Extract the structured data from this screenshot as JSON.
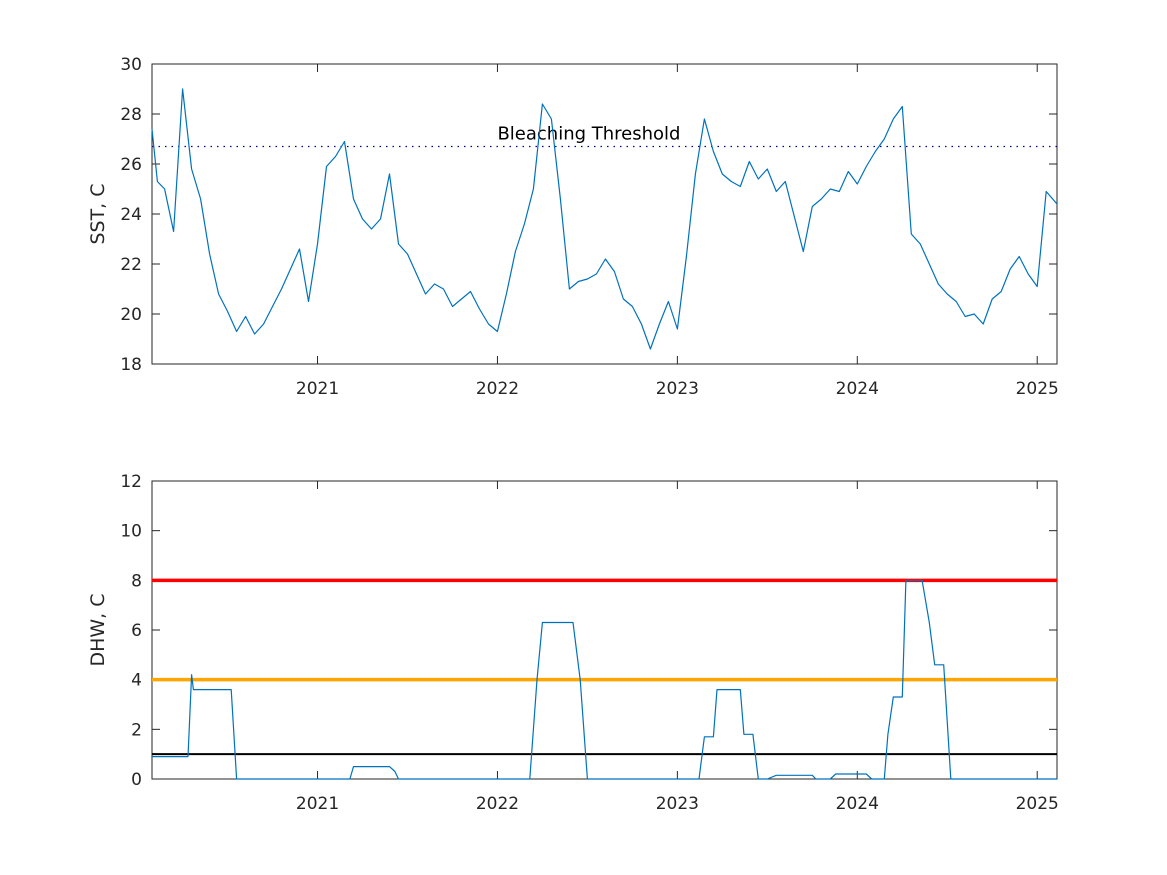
{
  "colors": {
    "series": "#0072bd",
    "threshold_line": "#00008b",
    "dhw_red": "#ff0000",
    "dhw_orange": "#ffa500",
    "dhw_black": "#000000",
    "axis": "#262626"
  },
  "chart_data": [
    {
      "type": "line",
      "ylabel": "SST, C",
      "xlabel": "",
      "title": "",
      "xlim": [
        2020.08,
        2025.11
      ],
      "ylim": [
        18,
        30
      ],
      "grid": false,
      "xticks": [
        2021,
        2022,
        2023,
        2024,
        2025
      ],
      "xtick_labels": [
        "2021",
        "2022",
        "2023",
        "2024",
        "2025"
      ],
      "yticks": [
        18,
        20,
        22,
        24,
        26,
        28,
        30
      ],
      "ytick_labels": [
        "18",
        "20",
        "22",
        "24",
        "26",
        "28",
        "30"
      ],
      "series": [
        {
          "x": [
            2020.08,
            2020.11,
            2020.15,
            2020.2,
            2020.25,
            2020.3,
            2020.35,
            2020.4,
            2020.45,
            2020.5,
            2020.55,
            2020.6,
            2020.65,
            2020.7,
            2020.75,
            2020.8,
            2020.85,
            2020.9,
            2020.95,
            2021.0,
            2021.05,
            2021.1,
            2021.15,
            2021.2,
            2021.25,
            2021.3,
            2021.35,
            2021.4,
            2021.45,
            2021.5,
            2021.55,
            2021.6,
            2021.65,
            2021.7,
            2021.75,
            2021.8,
            2021.85,
            2021.9,
            2021.95,
            2022.0,
            2022.05,
            2022.1,
            2022.15,
            2022.2,
            2022.25,
            2022.3,
            2022.35,
            2022.4,
            2022.45,
            2022.5,
            2022.55,
            2022.6,
            2022.65,
            2022.7,
            2022.75,
            2022.8,
            2022.85,
            2022.9,
            2022.95,
            2023.0,
            2023.05,
            2023.1,
            2023.15,
            2023.2,
            2023.25,
            2023.3,
            2023.35,
            2023.4,
            2023.45,
            2023.5,
            2023.55,
            2023.6,
            2023.65,
            2023.7,
            2023.75,
            2023.8,
            2023.85,
            2023.9,
            2023.95,
            2024.0,
            2024.05,
            2024.1,
            2024.15,
            2024.2,
            2024.25,
            2024.3,
            2024.35,
            2024.4,
            2024.45,
            2024.5,
            2024.55,
            2024.6,
            2024.65,
            2024.7,
            2024.75,
            2024.8,
            2024.85,
            2024.9,
            2024.95,
            2025.0,
            2025.05,
            2025.11
          ],
          "y": [
            27.4,
            25.3,
            25.0,
            23.3,
            29.0,
            25.8,
            24.6,
            22.4,
            20.8,
            20.1,
            19.3,
            19.9,
            19.2,
            19.6,
            20.3,
            21.0,
            21.8,
            22.6,
            20.5,
            22.8,
            25.9,
            26.3,
            26.9,
            24.6,
            23.8,
            23.4,
            23.8,
            25.6,
            22.8,
            22.4,
            21.6,
            20.8,
            21.2,
            21.0,
            20.3,
            20.6,
            20.9,
            20.2,
            19.6,
            19.3,
            20.8,
            22.5,
            23.6,
            25.0,
            28.4,
            27.8,
            24.6,
            21.0,
            21.3,
            21.4,
            21.6,
            22.2,
            21.7,
            20.6,
            20.3,
            19.6,
            18.6,
            19.6,
            20.5,
            19.4,
            22.3,
            25.6,
            27.8,
            26.5,
            25.6,
            25.3,
            25.1,
            26.1,
            25.4,
            25.8,
            24.9,
            25.3,
            23.9,
            22.5,
            24.3,
            24.6,
            25.0,
            24.9,
            25.7,
            25.2,
            25.9,
            26.5,
            27.0,
            27.8,
            28.3,
            23.2,
            22.8,
            22.0,
            21.2,
            20.8,
            20.5,
            19.9,
            20.0,
            19.6,
            20.6,
            20.9,
            21.8,
            22.3,
            21.6,
            21.1,
            24.9,
            24.4
          ]
        }
      ],
      "reference_lines": [
        {
          "y": 26.7,
          "style": "dotted",
          "label": "Bleaching Threshold",
          "label_x": 2022.0
        }
      ]
    },
    {
      "type": "line",
      "ylabel": "DHW, C",
      "xlabel": "",
      "title": "",
      "xlim": [
        2020.08,
        2025.11
      ],
      "ylim": [
        0,
        12
      ],
      "grid": false,
      "xticks": [
        2021,
        2022,
        2023,
        2024,
        2025
      ],
      "xtick_labels": [
        "2021",
        "2022",
        "2023",
        "2024",
        "2025"
      ],
      "yticks": [
        0,
        2,
        4,
        6,
        8,
        10,
        12
      ],
      "ytick_labels": [
        "0",
        "2",
        "4",
        "6",
        "8",
        "10",
        "12"
      ],
      "series": [
        {
          "x": [
            2020.08,
            2020.28,
            2020.3,
            2020.31,
            2020.34,
            2020.52,
            2020.55,
            2021.0,
            2021.18,
            2021.2,
            2021.4,
            2021.43,
            2021.45,
            2022.0,
            2022.18,
            2022.22,
            2022.25,
            2022.42,
            2022.46,
            2022.5,
            2023.0,
            2023.12,
            2023.15,
            2023.2,
            2023.22,
            2023.35,
            2023.37,
            2023.42,
            2023.45,
            2023.5,
            2023.55,
            2023.75,
            2023.77,
            2023.85,
            2023.88,
            2024.05,
            2024.08,
            2024.15,
            2024.17,
            2024.2,
            2024.25,
            2024.27,
            2024.36,
            2024.4,
            2024.43,
            2024.48,
            2024.52,
            2025.11
          ],
          "y": [
            0.9,
            0.9,
            4.2,
            3.6,
            3.6,
            3.6,
            0.0,
            0.0,
            0.0,
            0.5,
            0.5,
            0.3,
            0.0,
            0.0,
            0.0,
            4.0,
            6.3,
            6.3,
            4.0,
            0.0,
            0.0,
            0.0,
            1.7,
            1.7,
            3.6,
            3.6,
            1.8,
            1.8,
            0.0,
            0.0,
            0.15,
            0.15,
            0.0,
            0.0,
            0.2,
            0.2,
            0.0,
            0.0,
            1.8,
            3.3,
            3.3,
            8.0,
            8.0,
            6.3,
            4.6,
            4.6,
            0.0,
            0.0
          ]
        }
      ],
      "reference_lines": [
        {
          "y": 8,
          "style": "solid",
          "color_key": "dhw_red"
        },
        {
          "y": 4,
          "style": "solid",
          "color_key": "dhw_orange"
        },
        {
          "y": 1,
          "style": "solid",
          "color_key": "dhw_black"
        }
      ]
    }
  ]
}
